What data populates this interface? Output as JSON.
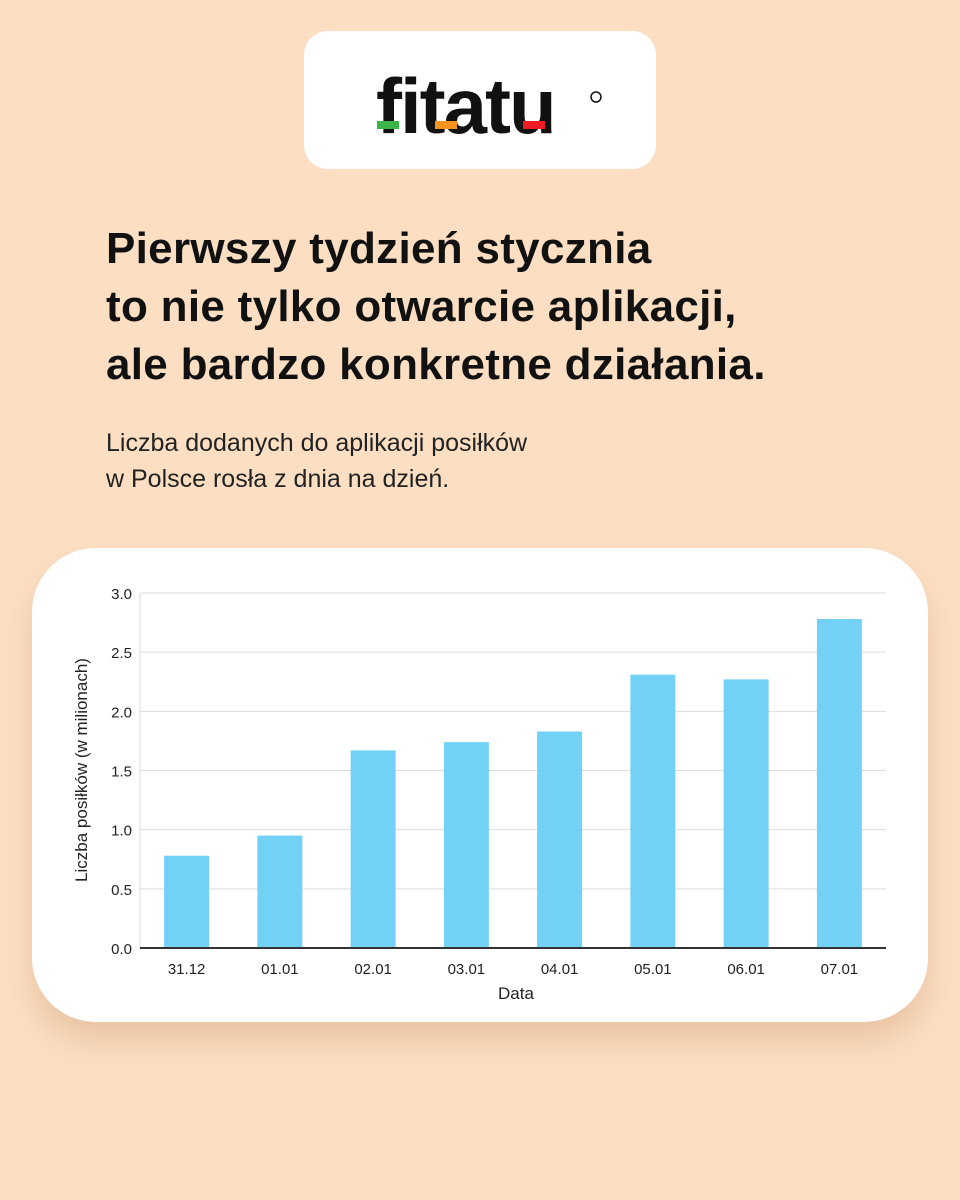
{
  "logo": {
    "text": "fitatu",
    "accent_colors": [
      "#3bb54a",
      "#f7941d",
      "#ed1c24"
    ]
  },
  "headline": [
    "Pierwszy tydzień stycznia",
    "to nie tylko otwarcie aplikacji,",
    "ale bardzo konkretne działania."
  ],
  "subtitle": [
    "Liczba dodanych do aplikacji posiłków",
    "w Polsce rosła z dnia na dzień."
  ],
  "chart_data": {
    "type": "bar",
    "categories": [
      "31.12",
      "01.01",
      "02.01",
      "03.01",
      "04.01",
      "05.01",
      "06.01",
      "07.01"
    ],
    "values": [
      0.78,
      0.95,
      1.67,
      1.74,
      1.83,
      2.31,
      2.27,
      2.78
    ],
    "xlabel": "Data",
    "ylabel": "Liczba posiłków (w milionach)",
    "ylim": [
      0,
      3.0
    ],
    "yticks": [
      "0.0",
      "0.5",
      "1.0",
      "1.5",
      "2.0",
      "2.5",
      "3.0"
    ],
    "grid": true,
    "bar_color": "#73d1f5"
  }
}
